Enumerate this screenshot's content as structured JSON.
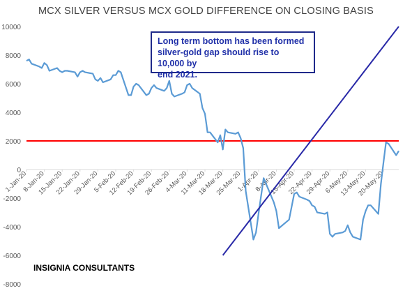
{
  "chart_data": {
    "type": "line",
    "title": "MCX SILVER VERSUS MCX GOLD DIFFERENCE ON CLOSING BASIS",
    "ylim": [
      -8000,
      10000
    ],
    "yticks": [
      -8000,
      -6000,
      -4000,
      -2000,
      0,
      2000,
      4000,
      6000,
      8000,
      10000
    ],
    "xlim": [
      "2020-01-01",
      "2020-05-26"
    ],
    "xtick_labels": [
      "1-Jan-20",
      "8-Jan-20",
      "15-Jan-20",
      "22-Jan-20",
      "29-Jan-20",
      "5-Feb-20",
      "12-Feb-20",
      "19-Feb-20",
      "26-Feb-20",
      "4-Mar-20",
      "11-Mar-20",
      "18-Mar-20",
      "25-Mar-20",
      "1-Apr-20",
      "8-Apr-20",
      "15-Apr-20",
      "22-Apr-20",
      "29-Apr-20",
      "6-May-20",
      "13-May-20",
      "20-May-20"
    ],
    "grid": false,
    "colors": {
      "series": "#5b9bd5",
      "reference_line": "#ff0000",
      "trend_line": "#2a2aa8",
      "annotation": "#1f2fa8"
    },
    "series": [
      {
        "x": [
          "2020-01-01",
          "2020-01-02",
          "2020-01-03",
          "2020-01-06",
          "2020-01-07",
          "2020-01-08",
          "2020-01-09",
          "2020-01-10",
          "2020-01-13",
          "2020-01-14",
          "2020-01-15",
          "2020-01-16",
          "2020-01-17",
          "2020-01-20",
          "2020-01-21",
          "2020-01-22",
          "2020-01-23",
          "2020-01-24",
          "2020-01-27",
          "2020-01-28",
          "2020-01-29",
          "2020-01-30",
          "2020-01-31",
          "2020-02-03",
          "2020-02-04",
          "2020-02-05",
          "2020-02-06",
          "2020-02-07",
          "2020-02-10",
          "2020-02-11",
          "2020-02-12",
          "2020-02-13",
          "2020-02-14",
          "2020-02-17",
          "2020-02-18",
          "2020-02-19",
          "2020-02-20",
          "2020-02-21",
          "2020-02-24",
          "2020-02-25",
          "2020-02-26",
          "2020-02-27",
          "2020-02-28",
          "2020-03-02",
          "2020-03-03",
          "2020-03-04",
          "2020-03-05",
          "2020-03-06",
          "2020-03-09",
          "2020-03-10",
          "2020-03-11",
          "2020-03-12",
          "2020-03-13",
          "2020-03-16",
          "2020-03-17",
          "2020-03-18",
          "2020-03-19",
          "2020-03-20",
          "2020-03-23",
          "2020-03-24",
          "2020-03-25",
          "2020-03-26",
          "2020-03-27",
          "2020-03-30",
          "2020-03-31",
          "2020-04-01",
          "2020-04-03",
          "2020-04-07",
          "2020-04-08",
          "2020-04-09",
          "2020-04-13",
          "2020-04-15",
          "2020-04-16",
          "2020-04-17",
          "2020-04-20",
          "2020-04-21",
          "2020-04-22",
          "2020-04-23",
          "2020-04-24",
          "2020-04-27",
          "2020-04-28",
          "2020-04-29",
          "2020-04-30",
          "2020-05-01",
          "2020-05-04",
          "2020-05-05",
          "2020-05-06",
          "2020-05-07",
          "2020-05-08",
          "2020-05-11",
          "2020-05-12",
          "2020-05-13",
          "2020-05-14",
          "2020-05-15",
          "2020-05-18",
          "2020-05-19",
          "2020-05-20",
          "2020-05-21",
          "2020-05-22",
          "2020-05-25",
          "2020-05-26"
        ],
        "values": [
          7600,
          7700,
          7400,
          7200,
          7100,
          7450,
          7300,
          6900,
          7100,
          6900,
          6800,
          6900,
          6900,
          6800,
          6500,
          6800,
          6900,
          6800,
          6700,
          6300,
          6200,
          6400,
          6100,
          6300,
          6600,
          6600,
          6900,
          6800,
          5200,
          5200,
          5800,
          6000,
          5900,
          5200,
          5300,
          5700,
          5900,
          5700,
          5500,
          5700,
          6200,
          5300,
          5100,
          5300,
          5400,
          5900,
          6000,
          5700,
          5300,
          4300,
          3900,
          2600,
          2600,
          1900,
          2400,
          1400,
          2800,
          2600,
          2500,
          2600,
          2200,
          1500,
          -1500,
          -4900,
          -4400,
          -3100,
          -600,
          -2300,
          -2900,
          -4100,
          -3500,
          -1700,
          -1600,
          -1900,
          -2100,
          -2200,
          -2500,
          -2600,
          -3000,
          -3100,
          -3000,
          -4500,
          -4700,
          -4500,
          -4400,
          -4300,
          -3900,
          -4400,
          -4700,
          -4900,
          -3500,
          -2900,
          -2500,
          -2500,
          -3100,
          -1000,
          500,
          1900,
          1800,
          1000,
          1300
        ]
      }
    ],
    "reference_line": {
      "y": 2000
    },
    "trend_line": {
      "from": [
        "2020-03-18",
        -6000
      ],
      "to": [
        "2020-05-26",
        10000
      ]
    },
    "annotation": {
      "lines": [
        "Long term bottom has been formed",
        "silver-gold gap should rise to 10,000 by",
        "end 2021."
      ]
    }
  },
  "footer": "INSIGNIA CONSULTANTS"
}
